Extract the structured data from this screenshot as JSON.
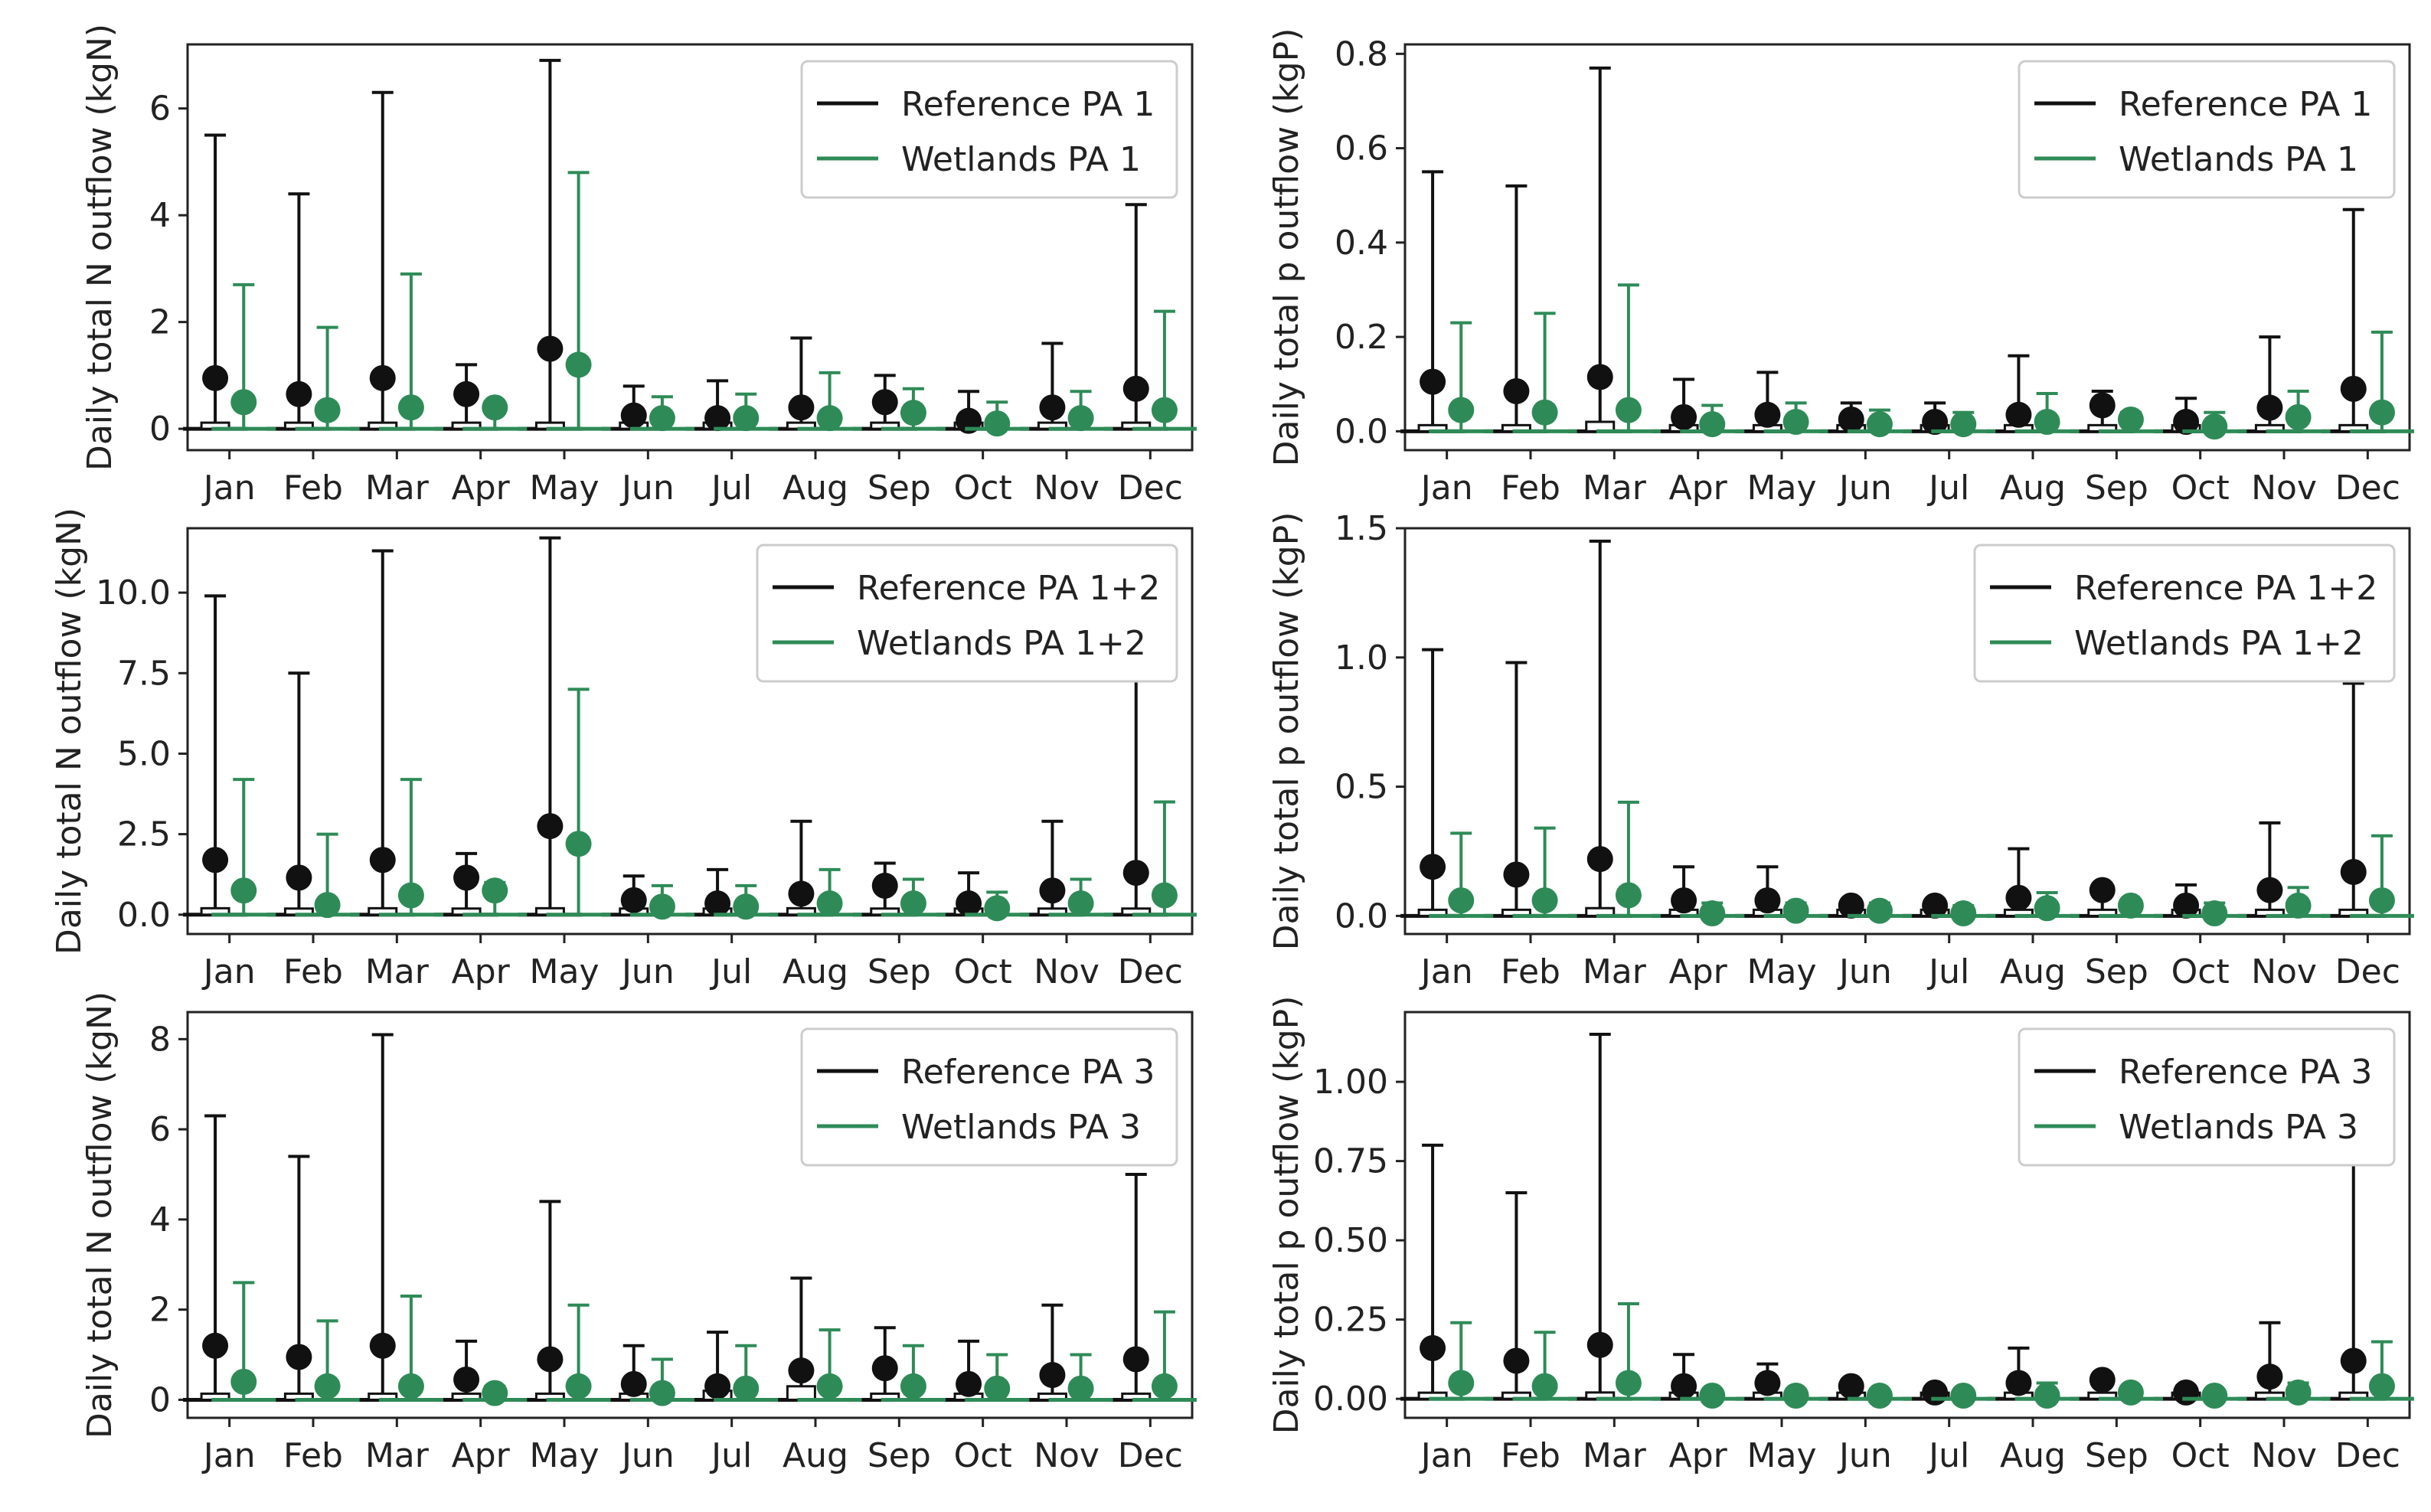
{
  "colors": {
    "reference": "#111111",
    "wetlands": "#2e8b57",
    "axes": "#222222",
    "legend_border": "#cccccc"
  },
  "chart_data": [
    {
      "type": "errorbar",
      "ylabel": "Daily total N outflow (kgN)",
      "ylim": [
        -0.4,
        7.2
      ],
      "yticks": [
        0,
        2,
        4,
        6
      ],
      "yticklabels": [
        "0",
        "2",
        "4",
        "6"
      ],
      "categories": [
        "Jan",
        "Feb",
        "Mar",
        "Apr",
        "May",
        "Jun",
        "Jul",
        "Aug",
        "Sep",
        "Oct",
        "Nov",
        "Dec"
      ],
      "legend": [
        "Reference PA 1",
        "Wetlands PA 1"
      ],
      "legend_position": "top-right",
      "series": [
        {
          "name": "Reference PA 1",
          "color": "#111111",
          "mean": [
            0.95,
            0.65,
            0.95,
            0.65,
            1.5,
            0.25,
            0.2,
            0.4,
            0.5,
            0.15,
            0.4,
            0.75
          ],
          "max": [
            5.5,
            4.4,
            6.3,
            1.2,
            6.9,
            0.8,
            0.9,
            1.7,
            1.0,
            0.7,
            1.6,
            4.2
          ],
          "box": [
            0.1,
            0.05,
            0.1,
            0.05,
            0.1,
            0.05,
            0.05,
            0.1,
            0.05,
            0.05,
            0.05,
            0.1
          ]
        },
        {
          "name": "Wetlands PA 1",
          "color": "#2e8b57",
          "mean": [
            0.5,
            0.35,
            0.4,
            0.4,
            1.2,
            0.2,
            0.2,
            0.2,
            0.3,
            0.1,
            0.2,
            0.35
          ],
          "max": [
            2.7,
            1.9,
            2.9,
            0.5,
            4.8,
            0.6,
            0.65,
            1.05,
            0.75,
            0.5,
            0.7,
            2.2
          ]
        }
      ]
    },
    {
      "type": "errorbar",
      "ylabel": "Daily total p outflow (kgP)",
      "ylim": [
        -0.04,
        0.82
      ],
      "yticks": [
        0,
        0.2,
        0.4,
        0.6,
        0.8
      ],
      "yticklabels": [
        "0.0",
        "0.2",
        "0.4",
        "0.6",
        "0.8"
      ],
      "categories": [
        "Jan",
        "Feb",
        "Mar",
        "Apr",
        "May",
        "Jun",
        "Jul",
        "Aug",
        "Sep",
        "Oct",
        "Nov",
        "Dec"
      ],
      "legend": [
        "Reference PA 1",
        "Wetlands PA 1"
      ],
      "legend_position": "top-right",
      "series": [
        {
          "name": "Reference PA 1",
          "color": "#111111",
          "mean": [
            0.105,
            0.085,
            0.115,
            0.03,
            0.035,
            0.025,
            0.02,
            0.035,
            0.055,
            0.02,
            0.05,
            0.09
          ],
          "max": [
            0.55,
            0.52,
            0.77,
            0.11,
            0.125,
            0.06,
            0.06,
            0.16,
            0.085,
            0.07,
            0.2,
            0.47
          ],
          "box": [
            0.01,
            0.01,
            0.02,
            0.005,
            0.005,
            0.005,
            0.005,
            0.01,
            0.005,
            0.005,
            0.005,
            0.01
          ]
        },
        {
          "name": "Wetlands PA 1",
          "color": "#2e8b57",
          "mean": [
            0.045,
            0.04,
            0.045,
            0.015,
            0.02,
            0.015,
            0.015,
            0.02,
            0.025,
            0.01,
            0.03,
            0.04
          ],
          "max": [
            0.23,
            0.25,
            0.31,
            0.055,
            0.06,
            0.045,
            0.04,
            0.08,
            0.04,
            0.04,
            0.085,
            0.21
          ]
        }
      ]
    },
    {
      "type": "errorbar",
      "ylabel": "Daily total N outflow (kgN)",
      "ylim": [
        -0.6,
        12.0
      ],
      "yticks": [
        0,
        2.5,
        5,
        7.5,
        10
      ],
      "yticklabels": [
        "0.0",
        "2.5",
        "5.0",
        "7.5",
        "10.0"
      ],
      "categories": [
        "Jan",
        "Feb",
        "Mar",
        "Apr",
        "May",
        "Jun",
        "Jul",
        "Aug",
        "Sep",
        "Oct",
        "Nov",
        "Dec"
      ],
      "legend": [
        "Reference PA 1+2",
        "Wetlands PA 1+2"
      ],
      "legend_position": "top-right",
      "series": [
        {
          "name": "Reference PA 1+2",
          "color": "#111111",
          "mean": [
            1.7,
            1.15,
            1.7,
            1.15,
            2.75,
            0.45,
            0.35,
            0.65,
            0.9,
            0.35,
            0.75,
            1.3
          ],
          "max": [
            9.9,
            7.5,
            11.3,
            1.9,
            11.7,
            1.2,
            1.4,
            2.9,
            1.6,
            1.3,
            2.9,
            7.6
          ],
          "box": [
            0.2,
            0.1,
            0.2,
            0.1,
            0.2,
            0.1,
            0.05,
            0.2,
            0.1,
            0.05,
            0.1,
            0.1
          ]
        },
        {
          "name": "Wetlands PA 1+2",
          "color": "#2e8b57",
          "mean": [
            0.75,
            0.3,
            0.6,
            0.75,
            2.2,
            0.25,
            0.25,
            0.35,
            0.35,
            0.2,
            0.35,
            0.6
          ],
          "max": [
            4.2,
            2.5,
            4.2,
            1.0,
            7.0,
            0.9,
            0.9,
            1.4,
            1.1,
            0.7,
            1.1,
            3.5
          ]
        }
      ]
    },
    {
      "type": "errorbar",
      "ylabel": "Daily total p outflow (kgP)",
      "ylim": [
        -0.07,
        1.5
      ],
      "yticks": [
        0,
        0.5,
        1.0,
        1.5
      ],
      "yticklabels": [
        "0.0",
        "0.5",
        "1.0",
        "1.5"
      ],
      "categories": [
        "Jan",
        "Feb",
        "Mar",
        "Apr",
        "May",
        "Jun",
        "Jul",
        "Aug",
        "Sep",
        "Oct",
        "Nov",
        "Dec"
      ],
      "legend": [
        "Reference PA 1+2",
        "Wetlands PA 1+2"
      ],
      "legend_position": "top-right",
      "series": [
        {
          "name": "Reference PA 1+2",
          "color": "#111111",
          "mean": [
            0.19,
            0.16,
            0.22,
            0.06,
            0.06,
            0.04,
            0.04,
            0.07,
            0.1,
            0.04,
            0.1,
            0.17
          ],
          "max": [
            1.03,
            0.98,
            1.45,
            0.19,
            0.19,
            0.06,
            0.06,
            0.26,
            0.12,
            0.12,
            0.36,
            0.9
          ],
          "box": [
            0.02,
            0.02,
            0.03,
            0.01,
            0.01,
            0.01,
            0.01,
            0.02,
            0.01,
            0.01,
            0.01,
            0.02
          ]
        },
        {
          "name": "Wetlands PA 1+2",
          "color": "#2e8b57",
          "mean": [
            0.06,
            0.06,
            0.08,
            0.01,
            0.02,
            0.02,
            0.01,
            0.03,
            0.04,
            0.01,
            0.04,
            0.06
          ],
          "max": [
            0.32,
            0.34,
            0.44,
            0.05,
            0.05,
            0.05,
            0.04,
            0.09,
            0.06,
            0.05,
            0.11,
            0.31
          ]
        }
      ]
    },
    {
      "type": "errorbar",
      "ylabel": "Daily total N outflow (kgN)",
      "ylim": [
        -0.4,
        8.6
      ],
      "yticks": [
        0,
        2,
        4,
        6,
        8
      ],
      "yticklabels": [
        "0",
        "2",
        "4",
        "6",
        "8"
      ],
      "categories": [
        "Jan",
        "Feb",
        "Mar",
        "Apr",
        "May",
        "Jun",
        "Jul",
        "Aug",
        "Sep",
        "Oct",
        "Nov",
        "Dec"
      ],
      "legend": [
        "Reference PA 3",
        "Wetlands PA 3"
      ],
      "legend_position": "top-right",
      "series": [
        {
          "name": "Reference PA 3",
          "color": "#111111",
          "mean": [
            1.2,
            0.95,
            1.2,
            0.45,
            0.9,
            0.35,
            0.3,
            0.65,
            0.7,
            0.35,
            0.55,
            0.9
          ],
          "max": [
            6.3,
            5.4,
            8.1,
            1.3,
            4.4,
            1.2,
            1.5,
            2.7,
            1.6,
            1.3,
            2.1,
            5.0
          ],
          "box": [
            0.1,
            0.1,
            0.1,
            0.05,
            0.1,
            0.1,
            0.2,
            0.3,
            0.05,
            0.05,
            0.05,
            0.1
          ]
        },
        {
          "name": "Wetlands PA 3",
          "color": "#2e8b57",
          "mean": [
            0.4,
            0.3,
            0.3,
            0.15,
            0.3,
            0.15,
            0.25,
            0.3,
            0.3,
            0.25,
            0.25,
            0.3
          ],
          "max": [
            2.6,
            1.75,
            2.3,
            0.3,
            2.1,
            0.9,
            1.2,
            1.55,
            1.2,
            1.0,
            1.0,
            1.95
          ]
        }
      ]
    },
    {
      "type": "errorbar",
      "ylabel": "Daily total p outflow (kgP)",
      "ylim": [
        -0.06,
        1.22
      ],
      "yticks": [
        0,
        0.25,
        0.5,
        0.75,
        1.0
      ],
      "yticklabels": [
        "0.00",
        "0.25",
        "0.50",
        "0.75",
        "1.00"
      ],
      "categories": [
        "Jan",
        "Feb",
        "Mar",
        "Apr",
        "May",
        "Jun",
        "Jul",
        "Aug",
        "Sep",
        "Oct",
        "Nov",
        "Dec"
      ],
      "legend": [
        "Reference PA 3",
        "Wetlands PA 3"
      ],
      "legend_position": "top-right",
      "series": [
        {
          "name": "Reference PA 3",
          "color": "#111111",
          "mean": [
            0.16,
            0.12,
            0.17,
            0.04,
            0.05,
            0.04,
            0.02,
            0.05,
            0.06,
            0.02,
            0.07,
            0.12
          ],
          "max": [
            0.8,
            0.65,
            1.15,
            0.14,
            0.11,
            0.05,
            0.03,
            0.16,
            0.07,
            0.04,
            0.24,
            0.76
          ],
          "box": [
            0.01,
            0.01,
            0.02,
            0.005,
            0.005,
            0.005,
            0.005,
            0.01,
            0.005,
            0.005,
            0.01,
            0.01
          ]
        },
        {
          "name": "Wetlands PA 3",
          "color": "#2e8b57",
          "mean": [
            0.05,
            0.04,
            0.05,
            0.01,
            0.01,
            0.01,
            0.01,
            0.01,
            0.02,
            0.01,
            0.02,
            0.04
          ],
          "max": [
            0.24,
            0.21,
            0.3,
            0.02,
            0.03,
            0.02,
            0.02,
            0.05,
            0.03,
            0.02,
            0.05,
            0.18
          ]
        }
      ]
    }
  ]
}
